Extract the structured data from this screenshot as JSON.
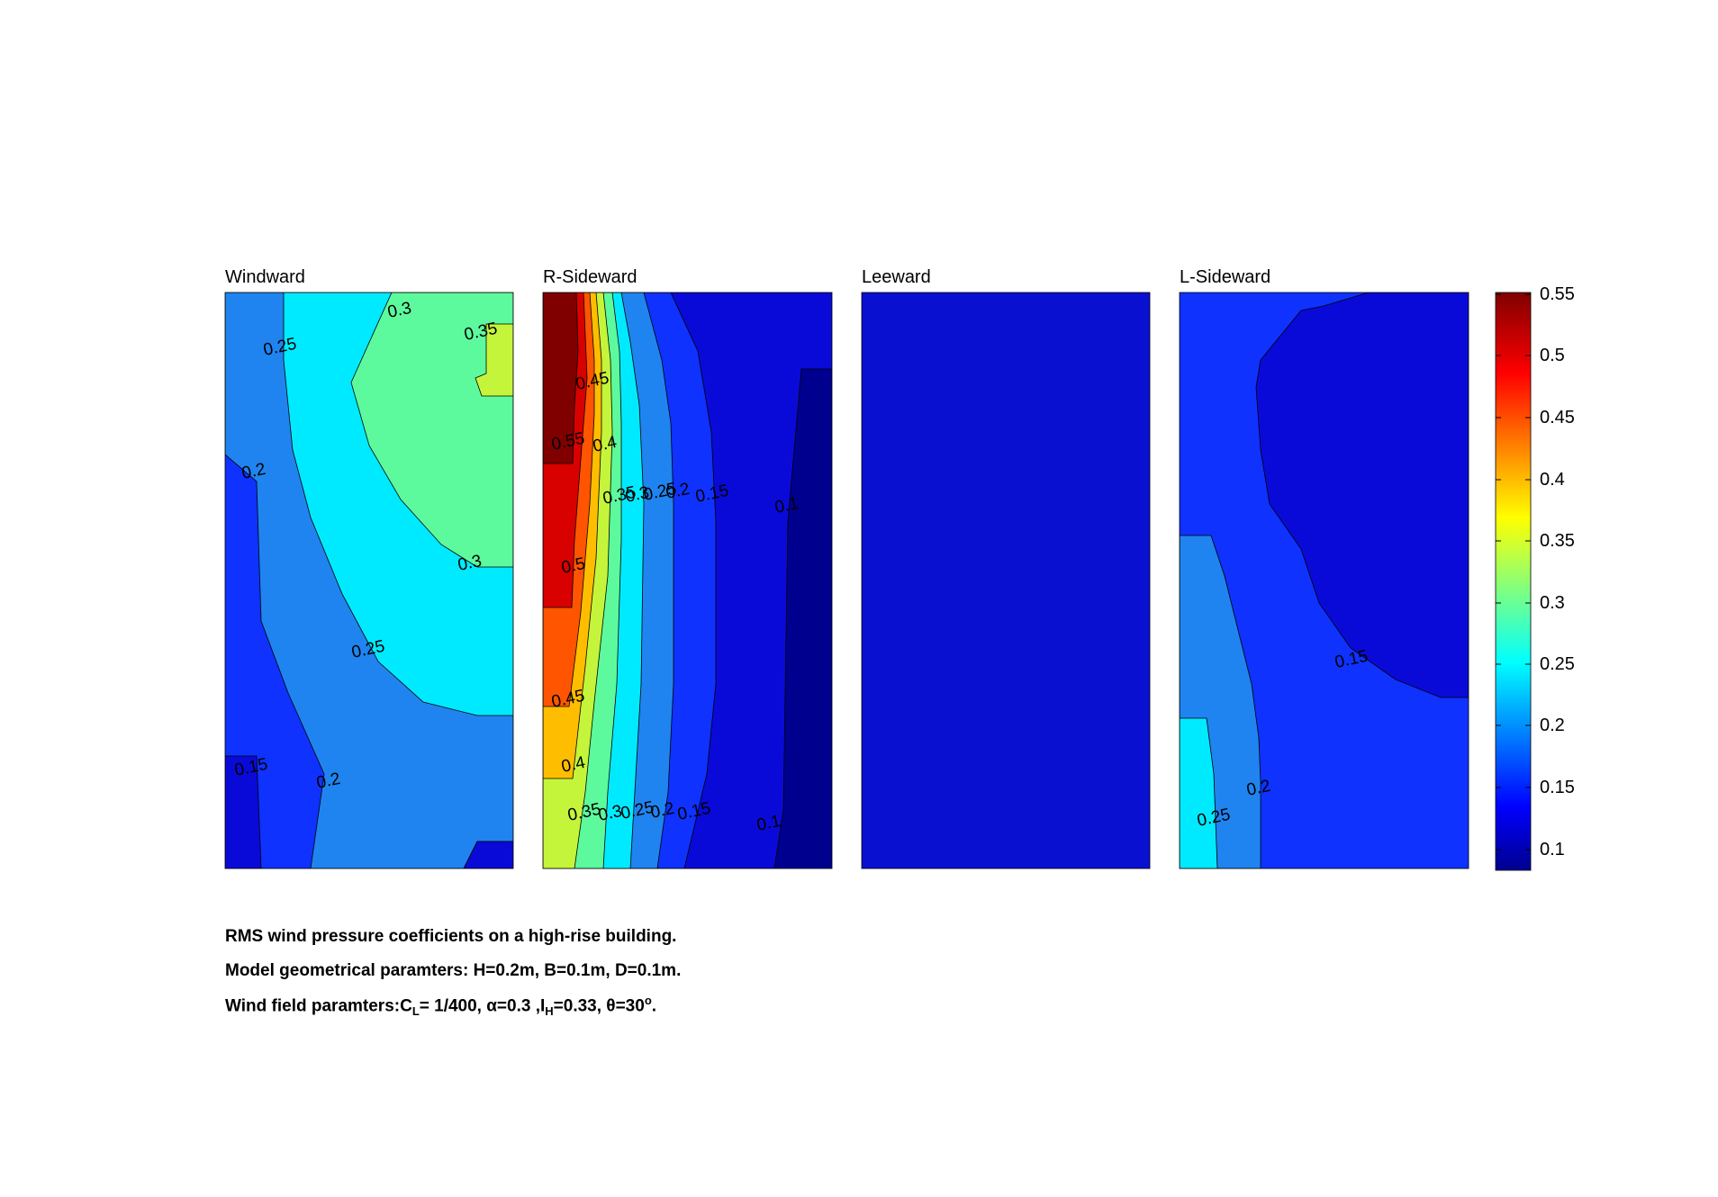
{
  "colors": {
    "c010": "#00008f",
    "c015": "#0a0ad8",
    "c020": "#0f32ff",
    "c025": "#1f84f0",
    "c030": "#00eaff",
    "c035": "#5dfa9d",
    "c040": "#c4f53a",
    "c045": "#ffbd00",
    "c050": "#ff5500",
    "c055": "#d90000",
    "c060": "#800000",
    "leeward_fill": "#0a10d0",
    "contour_line": "#000000"
  },
  "chart_data": [
    {
      "type": "contour",
      "title": "Windward",
      "levels": [
        0.15,
        0.2,
        0.25,
        0.3,
        0.35
      ],
      "contour_labels": [
        "0.3",
        "0.35",
        "0.25",
        "0.2",
        "0.3",
        "0.25",
        "0.15",
        "0.2"
      ],
      "value_range": [
        0.12,
        0.37
      ],
      "description_of_field": "highest (~0.35) at upper right, decreasing toward left and bottom (~0.13)"
    },
    {
      "type": "contour",
      "title": "R-Sideward",
      "levels": [
        0.1,
        0.15,
        0.2,
        0.25,
        0.3,
        0.35,
        0.4,
        0.45,
        0.5,
        0.55
      ],
      "contour_labels": [
        "0.45",
        "0.55",
        "0.4",
        "0.35",
        "0.3",
        "0.25",
        "0.2",
        "0.15",
        "0.1",
        "0.5",
        "0.45",
        "0.4",
        "0.35",
        "0.3",
        "0.25",
        "0.2",
        "0.15",
        "0.1"
      ],
      "value_range": [
        0.08,
        0.57
      ],
      "description_of_field": "maximum (~0.57) at upper-left edge, decreasing to ~0.08 at right edge"
    },
    {
      "type": "contour",
      "title": "Leeward",
      "levels": [],
      "contour_labels": [],
      "value_range": [
        0.1,
        0.15
      ],
      "description_of_field": "uniform, between 0.1 and 0.15"
    },
    {
      "type": "contour",
      "title": "L-Sideward",
      "levels": [
        0.15,
        0.2,
        0.25
      ],
      "contour_labels": [
        "0.15",
        "0.2",
        "0.25"
      ],
      "value_range": [
        0.1,
        0.27
      ],
      "description_of_field": "highest (~0.26) at lower-left, lowest (<0.15) at upper right"
    }
  ],
  "colorbar": {
    "ticks": [
      "0.55",
      "0.5",
      "0.45",
      "0.4",
      "0.35",
      "0.3",
      "0.25",
      "0.2",
      "0.15",
      "0.1"
    ],
    "range": [
      0.08,
      0.57
    ],
    "colormap": "jet"
  },
  "caption": {
    "line1": "RMS wind pressure coefficients on a high-rise building.",
    "line2": "Model geometrical paramters: H=0.2m, B=0.1m, D=0.1m.",
    "line3_prefix": "Wind field paramters:C",
    "line3_sub1": "L",
    "line3_mid1": "= 1/400, α=0.3 ,I",
    "line3_sub2": "H",
    "line3_mid2": "=0.33, θ=30",
    "line3_sup": "o",
    "line3_end": "."
  }
}
